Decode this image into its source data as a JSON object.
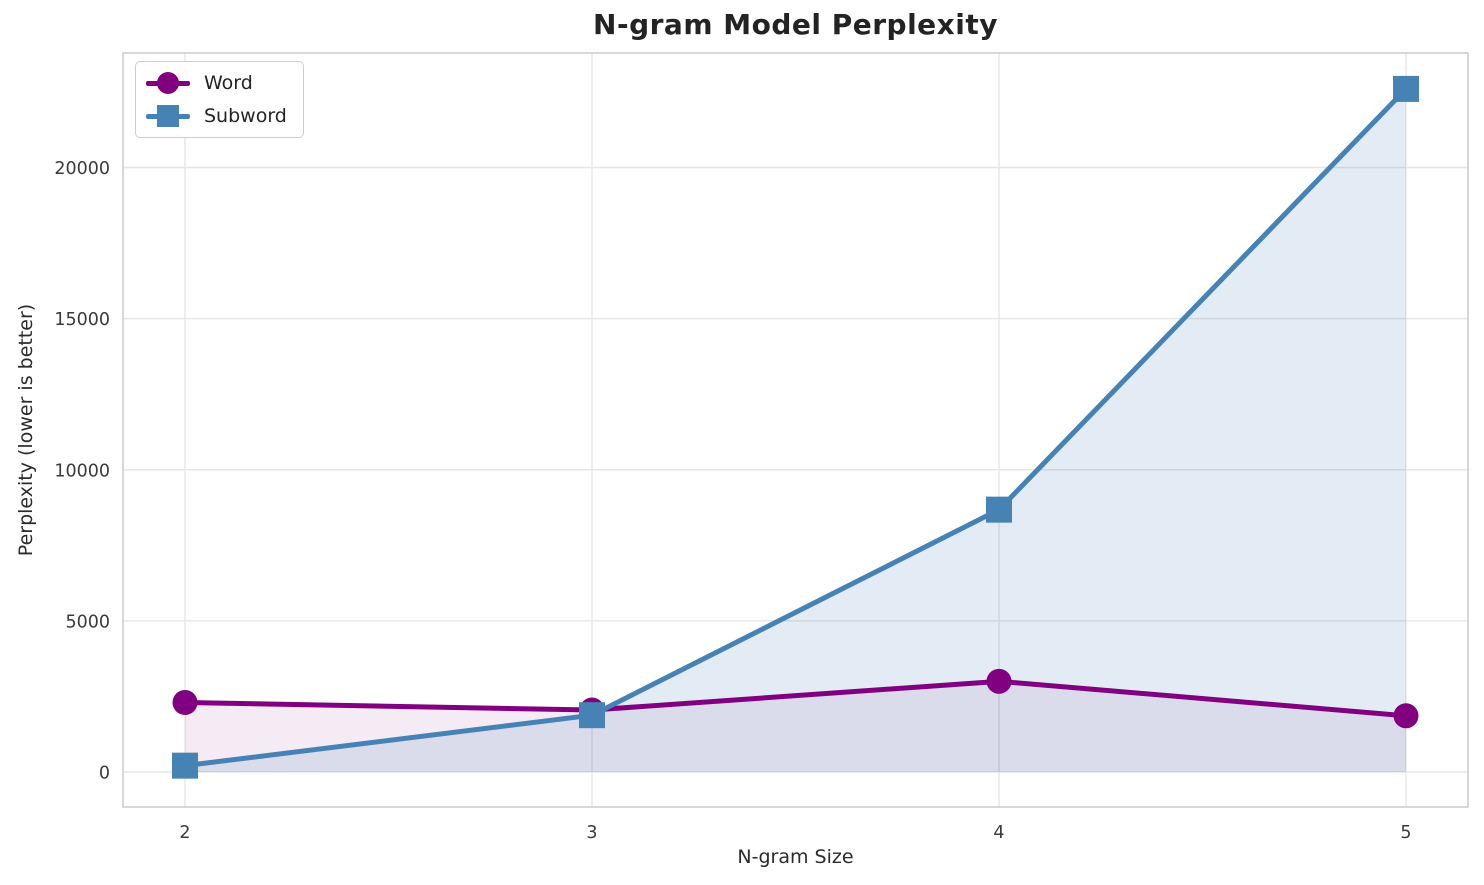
{
  "title": "N-gram Model Perplexity",
  "chart_data": {
    "type": "line",
    "title": "N-gram Model Perplexity",
    "xlabel": "N-gram Size",
    "ylabel": "Perplexity (lower is better)",
    "x": [
      2,
      3,
      4,
      5
    ],
    "xticks": [
      2,
      3,
      4,
      5
    ],
    "yticks": [
      0,
      5000,
      10000,
      15000,
      20000
    ],
    "ylim": [
      -1200,
      23900
    ],
    "grid": true,
    "legend_position": "upper left",
    "series": [
      {
        "name": "Word",
        "marker": "circle",
        "color": "#800080",
        "fill_opacity": 0.08,
        "values": [
          2300,
          2050,
          3000,
          1860
        ]
      },
      {
        "name": "Subword",
        "marker": "square",
        "color": "#4682B4",
        "fill_opacity": 0.15,
        "values": [
          210,
          1880,
          8680,
          22600
        ]
      }
    ],
    "area_fill_to_zero": true,
    "grid_color": "#e6e6e6",
    "spine_color": "#cacaca",
    "tick_label_color": "#3a3a3a"
  }
}
